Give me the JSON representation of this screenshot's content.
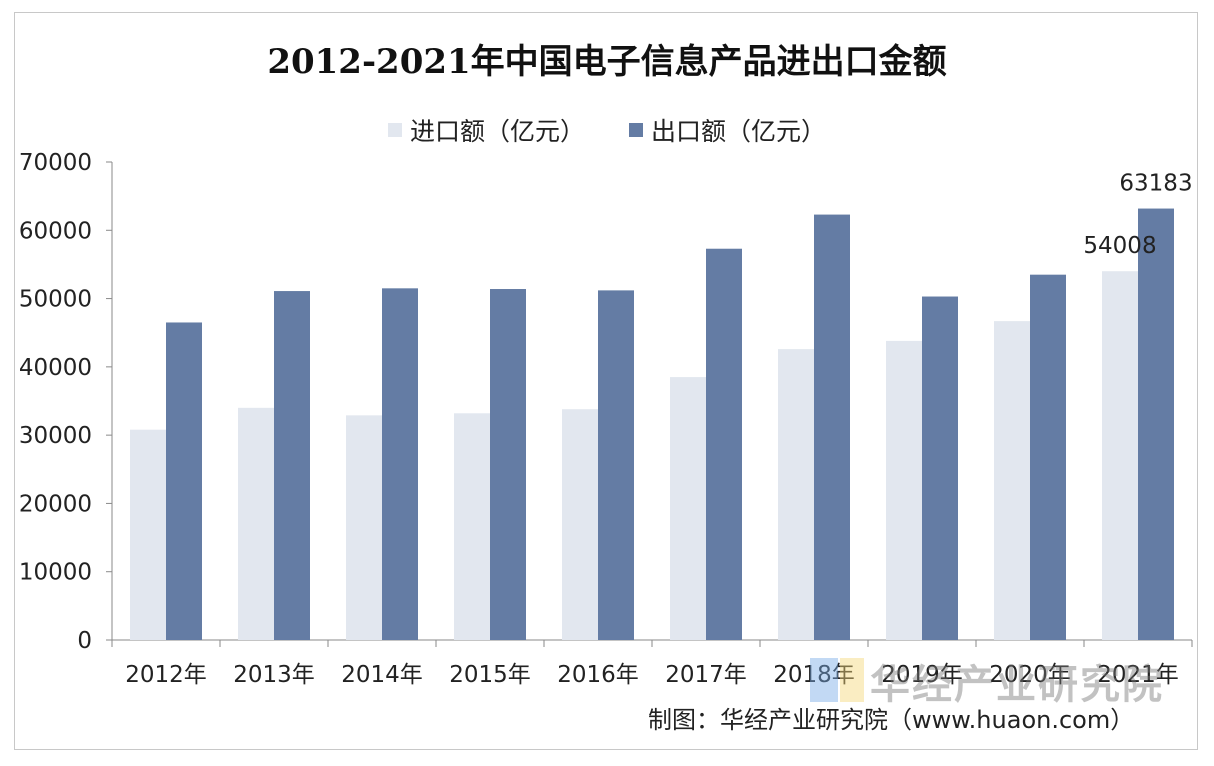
{
  "chart_data": {
    "type": "bar",
    "title": "2012-2021年中国电子信息产品进出口金额",
    "categories": [
      "2012年",
      "2013年",
      "2014年",
      "2015年",
      "2016年",
      "2017年",
      "2018年",
      "2019年",
      "2020年",
      "2021年"
    ],
    "series": [
      {
        "name": "进口额（亿元）",
        "color": "#e2e7ef",
        "values": [
          30800,
          34000,
          32900,
          33200,
          33800,
          38500,
          42600,
          43800,
          46700,
          54008
        ]
      },
      {
        "name": "出口额（亿元）",
        "color": "#647ca4",
        "values": [
          46500,
          51100,
          51500,
          51400,
          51200,
          57300,
          62300,
          50300,
          53500,
          63183
        ]
      }
    ],
    "data_labels": [
      {
        "series": 0,
        "index": 9,
        "text": "54008"
      },
      {
        "series": 1,
        "index": 9,
        "text": "63183"
      }
    ],
    "ylim": [
      0,
      70000
    ],
    "yticks": [
      "0",
      "10000",
      "20000",
      "30000",
      "40000",
      "50000",
      "60000",
      "70000"
    ],
    "grid": false,
    "legend_position": "top-center"
  },
  "source": "制图：华经产业研究院（www.huaon.com）",
  "watermark": "华经产业研究院"
}
